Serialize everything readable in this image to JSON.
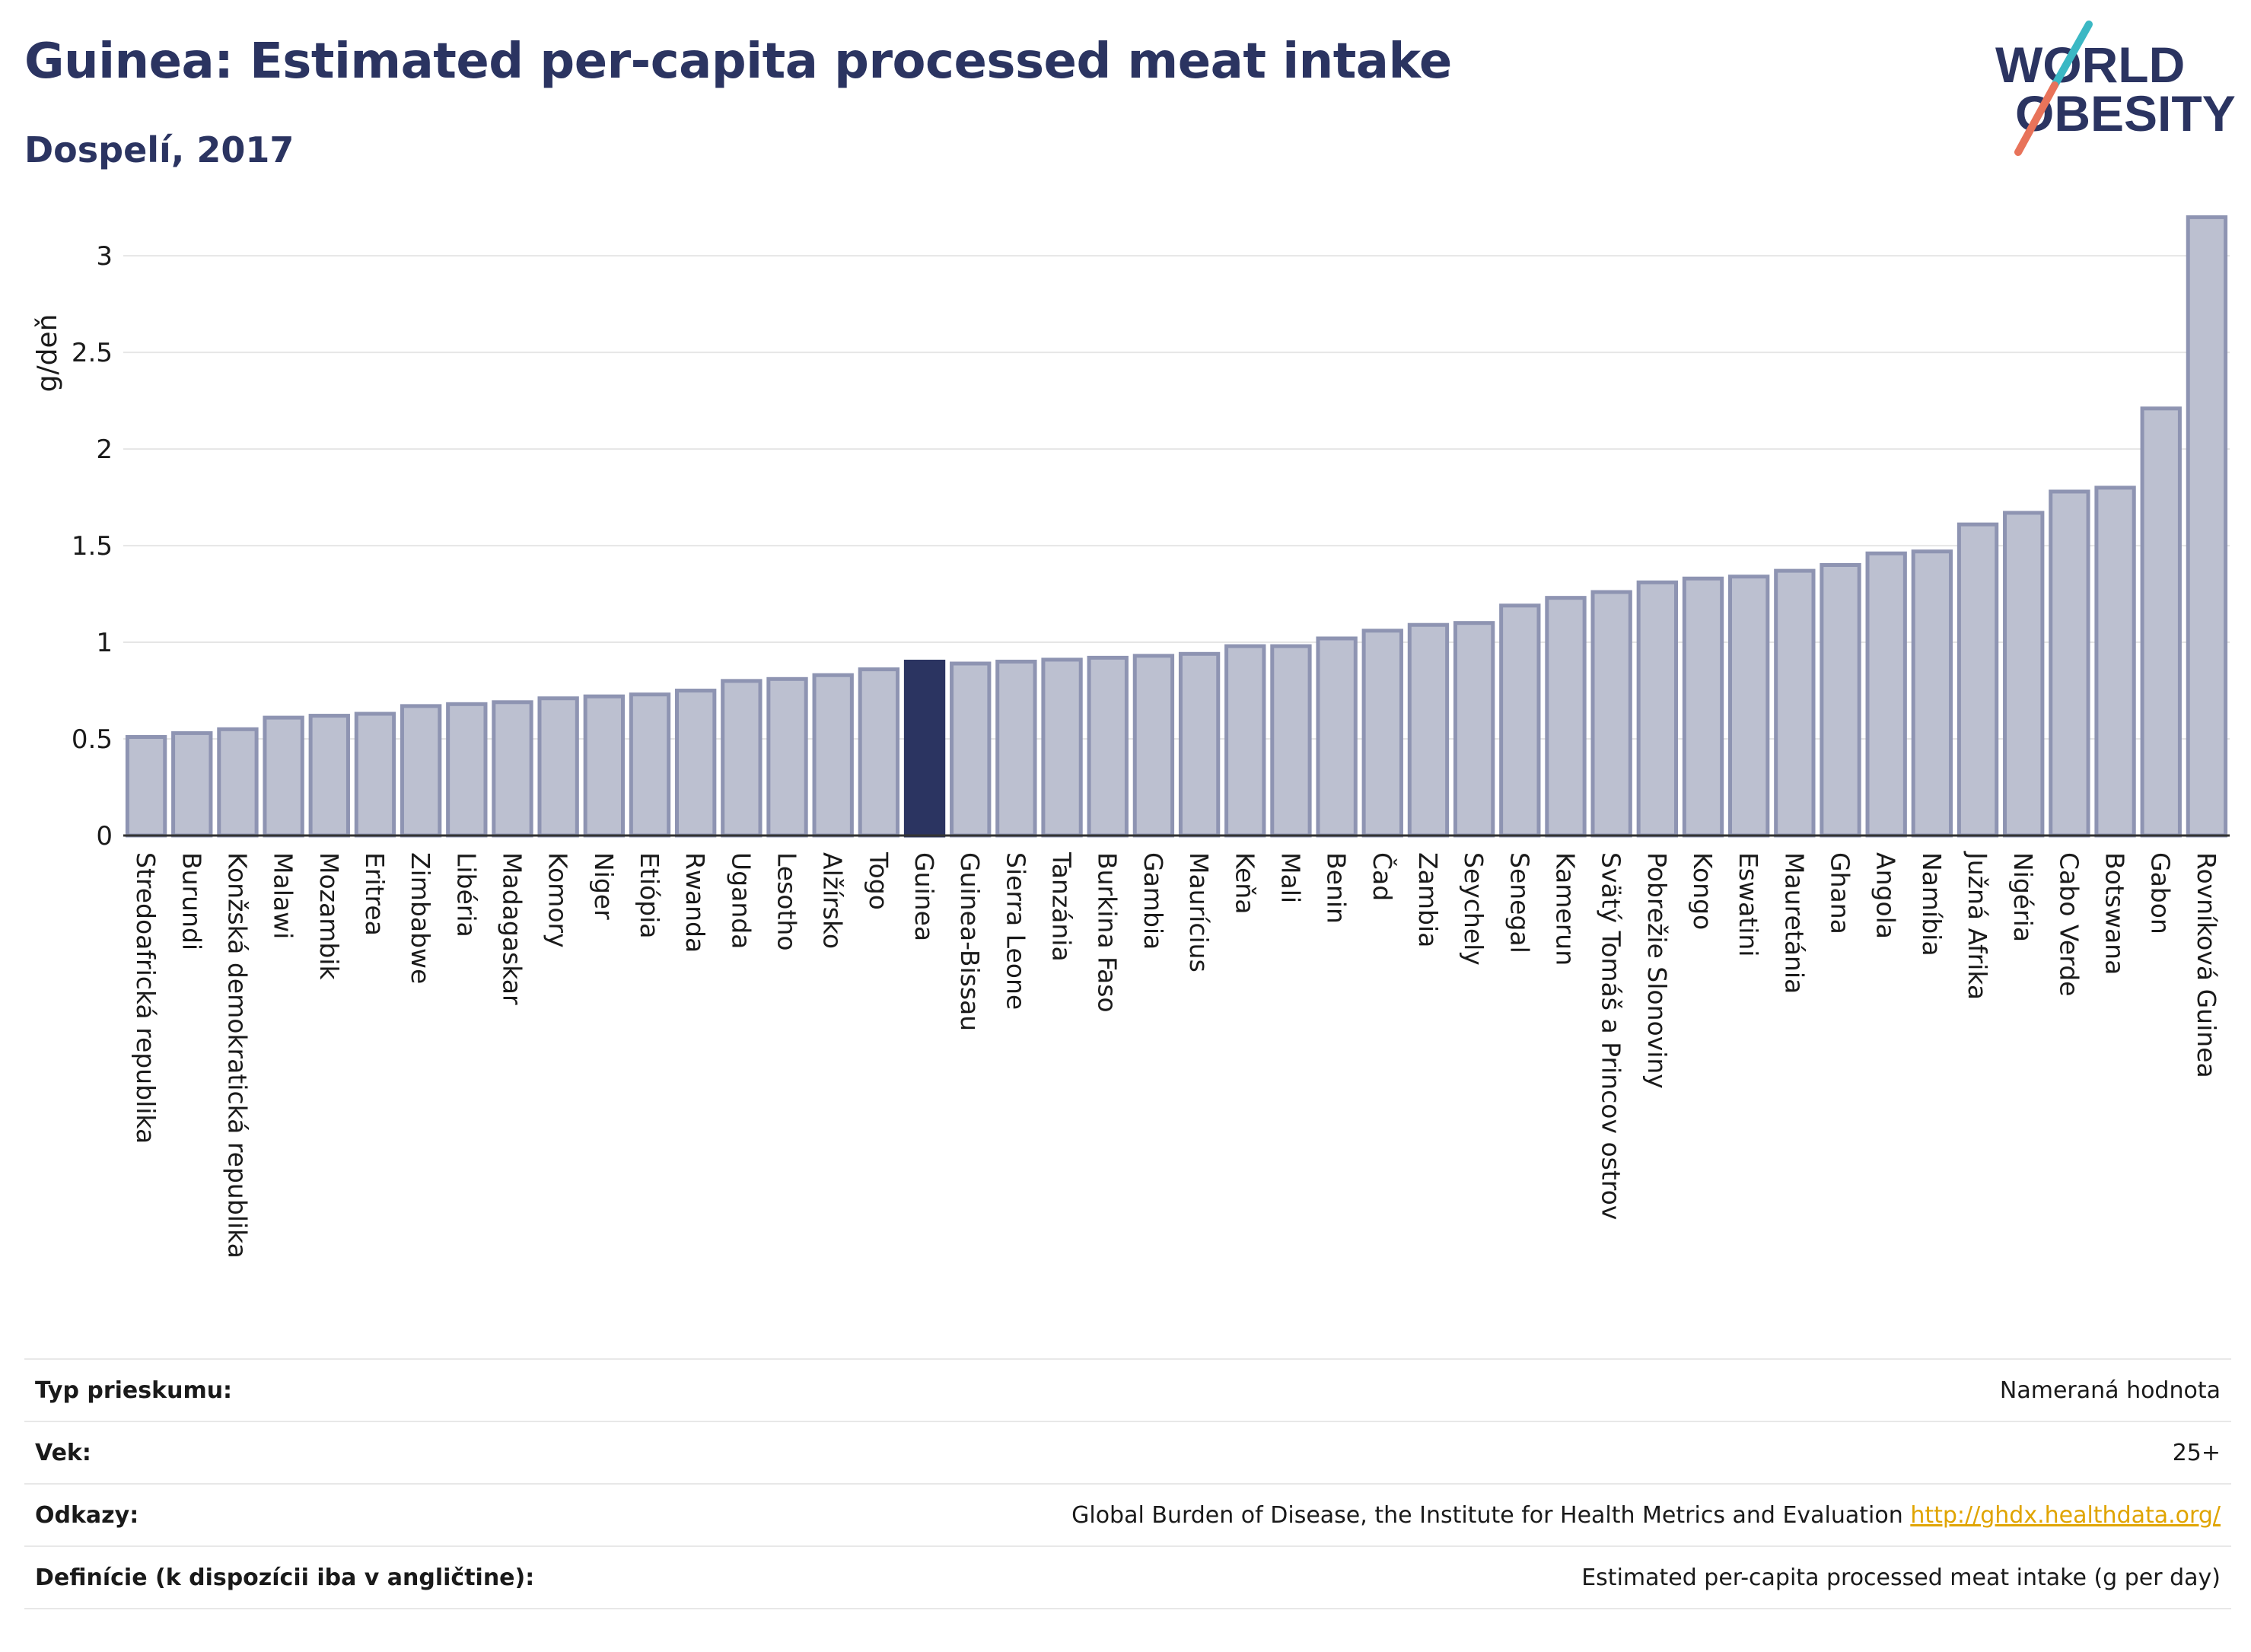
{
  "header": {
    "title": "Guinea: Estimated per-capita processed meat intake",
    "subtitle": "Dospelí, 2017"
  },
  "logo": {
    "line1": "WORLD",
    "line2": "OBESITY",
    "colors": {
      "text": "#2b3461",
      "slash_teal": "#3bb8c4",
      "slash_coral": "#e8735a"
    }
  },
  "chart_data": {
    "type": "bar",
    "title": "Guinea: Estimated per-capita processed meat intake",
    "subtitle": "Dospelí, 2017",
    "ylabel": "g/deň",
    "xlabel": "",
    "ylim": [
      0,
      3.3
    ],
    "yticks": [
      0,
      0.5,
      1,
      1.5,
      2,
      2.5,
      3
    ],
    "ytick_labels": [
      "0",
      "0.5",
      "1",
      "1.5",
      "2",
      "2.5",
      "3"
    ],
    "grid": true,
    "highlight": "Guinea",
    "colors": {
      "bar": "#bcc0d0",
      "bar_stroke": "#8e94b2",
      "highlight": "#2b3461"
    },
    "categories": [
      "Stredoafrická republika",
      "Burundi",
      "Konžská demokratická republika",
      "Malawi",
      "Mozambik",
      "Eritrea",
      "Zimbabwe",
      "Libéria",
      "Madagaskar",
      "Komory",
      "Niger",
      "Etiópia",
      "Rwanda",
      "Uganda",
      "Lesotho",
      "Alžírsko",
      "Togo",
      "Guinea",
      "Guinea-Bissau",
      "Sierra Leone",
      "Tanzánia",
      "Burkina Faso",
      "Gambia",
      "Maurícius",
      "Keňa",
      "Mali",
      "Benin",
      "Čad",
      "Zambia",
      "Seychely",
      "Senegal",
      "Kamerun",
      "Svätý Tomáš a Princov ostrov",
      "Pobrežie Slonoviny",
      "Kongo",
      "Eswatini",
      "Mauretánia",
      "Ghana",
      "Angola",
      "Namíbia",
      "Južná Afrika",
      "Nigéria",
      "Cabo Verde",
      "Botswana",
      "Gabon",
      "Rovníková Guinea"
    ],
    "values": [
      0.51,
      0.53,
      0.55,
      0.61,
      0.62,
      0.63,
      0.67,
      0.68,
      0.69,
      0.71,
      0.72,
      0.73,
      0.75,
      0.8,
      0.81,
      0.83,
      0.86,
      0.9,
      0.89,
      0.9,
      0.91,
      0.92,
      0.93,
      0.94,
      0.98,
      0.98,
      1.02,
      1.06,
      1.09,
      1.1,
      1.19,
      1.23,
      1.26,
      1.31,
      1.33,
      1.34,
      1.37,
      1.4,
      1.46,
      1.47,
      1.61,
      1.67,
      1.78,
      1.8,
      2.21,
      3.2
    ]
  },
  "meta": {
    "rows": [
      {
        "label": "Typ prieskumu:",
        "value": "Nameraná hodnota"
      },
      {
        "label": "Vek:",
        "value": "25+"
      },
      {
        "label": "Odkazy:",
        "value": "Global Burden of Disease, the Institute for Health Metrics and Evaluation",
        "link": "http://ghdx.healthdata.org/"
      },
      {
        "label": "Definície (k dispozícii iba v angličtine):",
        "value": "Estimated per-capita processed meat intake (g per day)"
      }
    ]
  }
}
